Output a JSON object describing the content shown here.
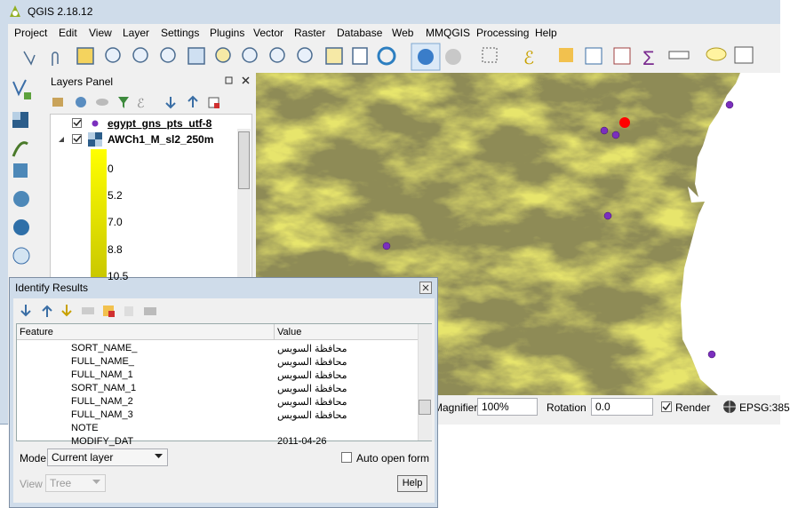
{
  "window": {
    "title": "QGIS 2.18.12"
  },
  "menu": [
    "Project",
    "Edit",
    "View",
    "Layer",
    "Settings",
    "Plugins",
    "Vector",
    "Raster",
    "Database",
    "Web",
    "MMQGIS",
    "Processing",
    "Help"
  ],
  "layers_panel": {
    "title": "Layers Panel",
    "layers": [
      {
        "name": "egypt_gns_pts_utf-8"
      },
      {
        "name": "AWCh1_M_sl2_250m"
      }
    ],
    "legend": [
      "0",
      "5.2",
      "7.0",
      "8.8",
      "10.5"
    ]
  },
  "statusbar": {
    "magnifier_label": "Magnifier",
    "magnifier": "100%",
    "rotation_label": "Rotation",
    "rotation": "0.0",
    "render": "Render",
    "crs": "EPSG:385"
  },
  "identify": {
    "title": "Identify Results",
    "columns": [
      "Feature",
      "Value"
    ],
    "rows": [
      [
        "SORT_NAME_",
        "محافظة السويس"
      ],
      [
        "FULL_NAME_",
        "محافظة السويس"
      ],
      [
        "FULL_NAM_1",
        "محافظة السويس"
      ],
      [
        "SORT_NAM_1",
        "محافظة السويس"
      ],
      [
        "FULL_NAM_2",
        "محافظة السويس"
      ],
      [
        "FULL_NAM_3",
        "محافظة السويس"
      ],
      [
        "NOTE"
      ],
      [
        "MODIFY_DAT",
        "2011-04-26"
      ]
    ],
    "mode_label": "Mode",
    "mode": "Current layer",
    "auto_open": "Auto open form",
    "view_label": "View",
    "view": "Tree",
    "help": "Help"
  }
}
